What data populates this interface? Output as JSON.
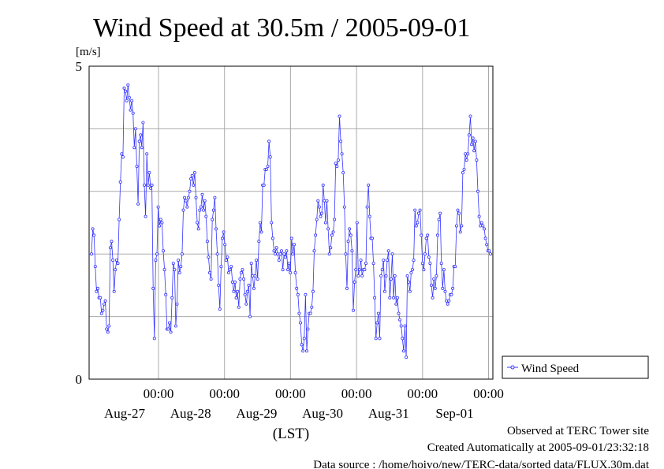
{
  "chart_data": {
    "type": "line",
    "title": "Wind Speed at 30.5m / 2005-09-01",
    "ylabel": "[m/s]",
    "xlabel": "(LST)",
    "ylim": [
      0,
      5
    ],
    "y_tick_labels": [
      "0",
      "5"
    ],
    "x_tick_labels": [
      {
        "time": "00:00",
        "date": "Aug-27"
      },
      {
        "time": "00:00",
        "date": "Aug-28"
      },
      {
        "time": "00:00",
        "date": "Aug-29"
      },
      {
        "time": "00:00",
        "date": "Aug-30"
      },
      {
        "time": "00:00",
        "date": "Aug-31"
      },
      {
        "time": "00:00",
        "date": "Sep-01"
      }
    ],
    "grid": true,
    "legend_position": "right",
    "series": [
      {
        "name": "Wind Speed",
        "color": "#3333ff",
        "values": [
          2.0,
          2.4,
          2.3,
          1.8,
          1.4,
          1.45,
          1.3,
          1.3,
          1.05,
          1.1,
          1.2,
          1.25,
          0.8,
          0.75,
          0.85,
          2.1,
          2.2,
          1.9,
          1.4,
          1.75,
          1.9,
          1.85,
          2.55,
          3.15,
          3.6,
          3.55,
          4.65,
          4.6,
          4.45,
          4.7,
          4.5,
          4.3,
          4.45,
          4.25,
          3.7,
          4.0,
          3.4,
          2.8,
          3.8,
          3.9,
          3.7,
          4.1,
          3.1,
          2.6,
          3.6,
          3.1,
          3.3,
          3.05,
          3.1,
          1.45,
          0.65,
          1.9,
          2.0,
          2.75,
          2.45,
          2.55,
          2.5,
          2.05,
          1.75,
          1.35,
          0.8,
          0.8,
          0.9,
          0.75,
          1.3,
          1.85,
          1.75,
          0.85,
          1.2,
          1.9,
          1.7,
          1.8,
          2.0,
          2.7,
          2.9,
          2.85,
          2.75,
          2.9,
          3.0,
          3.2,
          3.25,
          3.1,
          3.3,
          2.9,
          2.5,
          2.4,
          2.7,
          2.75,
          2.95,
          2.7,
          2.85,
          2.6,
          2.2,
          1.95,
          1.7,
          1.6,
          2.55,
          2.7,
          2.9,
          2.4,
          2.0,
          1.5,
          1.12,
          1.8,
          2.25,
          2.35,
          2.15,
          1.9,
          1.95,
          1.7,
          1.75,
          1.8,
          1.55,
          1.4,
          1.55,
          1.3,
          1.4,
          1.15,
          1.6,
          1.7,
          1.75,
          1.6,
          1.35,
          1.2,
          1.4,
          1.5,
          1.0,
          1.85,
          1.65,
          1.45,
          1.65,
          1.9,
          1.6,
          2.2,
          2.5,
          2.35,
          3.1,
          3.1,
          3.35,
          3.35,
          3.4,
          3.8,
          3.55,
          2.5,
          2.25,
          2.05,
          2.0,
          2.1,
          2.0,
          1.9,
          2.0,
          2.05,
          1.75,
          2.0,
          1.95,
          2.05,
          1.75,
          1.85,
          1.7,
          2.25,
          2.0,
          2.15,
          1.7,
          1.45,
          1.35,
          1.05,
          0.9,
          0.55,
          0.45,
          0.65,
          1.35,
          0.45,
          0.8,
          1.05,
          1.05,
          1.15,
          1.4,
          2.05,
          2.3,
          2.55,
          2.85,
          2.75,
          2.6,
          2.65,
          3.1,
          2.85,
          2.5,
          2.85,
          2.4,
          2.0,
          2.1,
          2.3,
          2.35,
          2.55,
          3.45,
          3.4,
          3.5,
          4.2,
          3.8,
          3.6,
          3.3,
          2.75,
          2.0,
          1.45,
          2.2,
          2.4,
          2.3,
          2.05,
          1.1,
          1.55,
          1.75,
          2.5,
          1.65,
          1.75,
          1.9,
          1.65,
          1.75,
          1.75,
          1.85,
          2.75,
          3.1,
          2.6,
          2.25,
          2.25,
          1.85,
          1.3,
          0.65,
          0.9,
          1.05,
          0.65,
          1.65,
          1.75,
          1.9,
          1.4,
          1.65,
          1.9,
          2.05,
          1.3,
          1.6,
          2.0,
          1.3,
          1.65,
          1.2,
          1.3,
          1.05,
          0.95,
          0.85,
          0.65,
          0.45,
          0.85,
          0.35,
          1.65,
          1.55,
          1.4,
          1.7,
          1.75,
          1.9,
          2.7,
          2.45,
          2.5,
          2.65,
          2.7,
          2.3,
          1.85,
          1.75,
          2.0,
          2.25,
          2.3,
          1.95,
          1.85,
          1.5,
          1.3,
          1.6,
          1.45,
          1.65,
          2.3,
          2.55,
          2.65,
          1.85,
          1.45,
          1.75,
          1.4,
          1.25,
          1.2,
          1.25,
          1.35,
          1.35,
          1.45,
          1.8,
          1.8,
          2.45,
          2.7,
          2.65,
          2.35,
          2.45,
          3.3,
          3.35,
          3.6,
          3.5,
          3.6,
          3.9,
          4.2,
          3.75,
          3.85,
          3.65,
          3.8,
          3.5,
          3.0,
          2.6,
          2.45,
          2.5,
          2.45,
          2.4,
          2.25,
          2.15,
          2.05,
          2.05,
          2.0
        ]
      }
    ]
  },
  "footer": {
    "site": "Observed at TERC Tower site",
    "created": "Created Automatically at 2005-09-01/23:32:18",
    "source": "Data source : /home/hoivo/new/TERC-data/sorted  data/FLUX.30m.dat"
  }
}
